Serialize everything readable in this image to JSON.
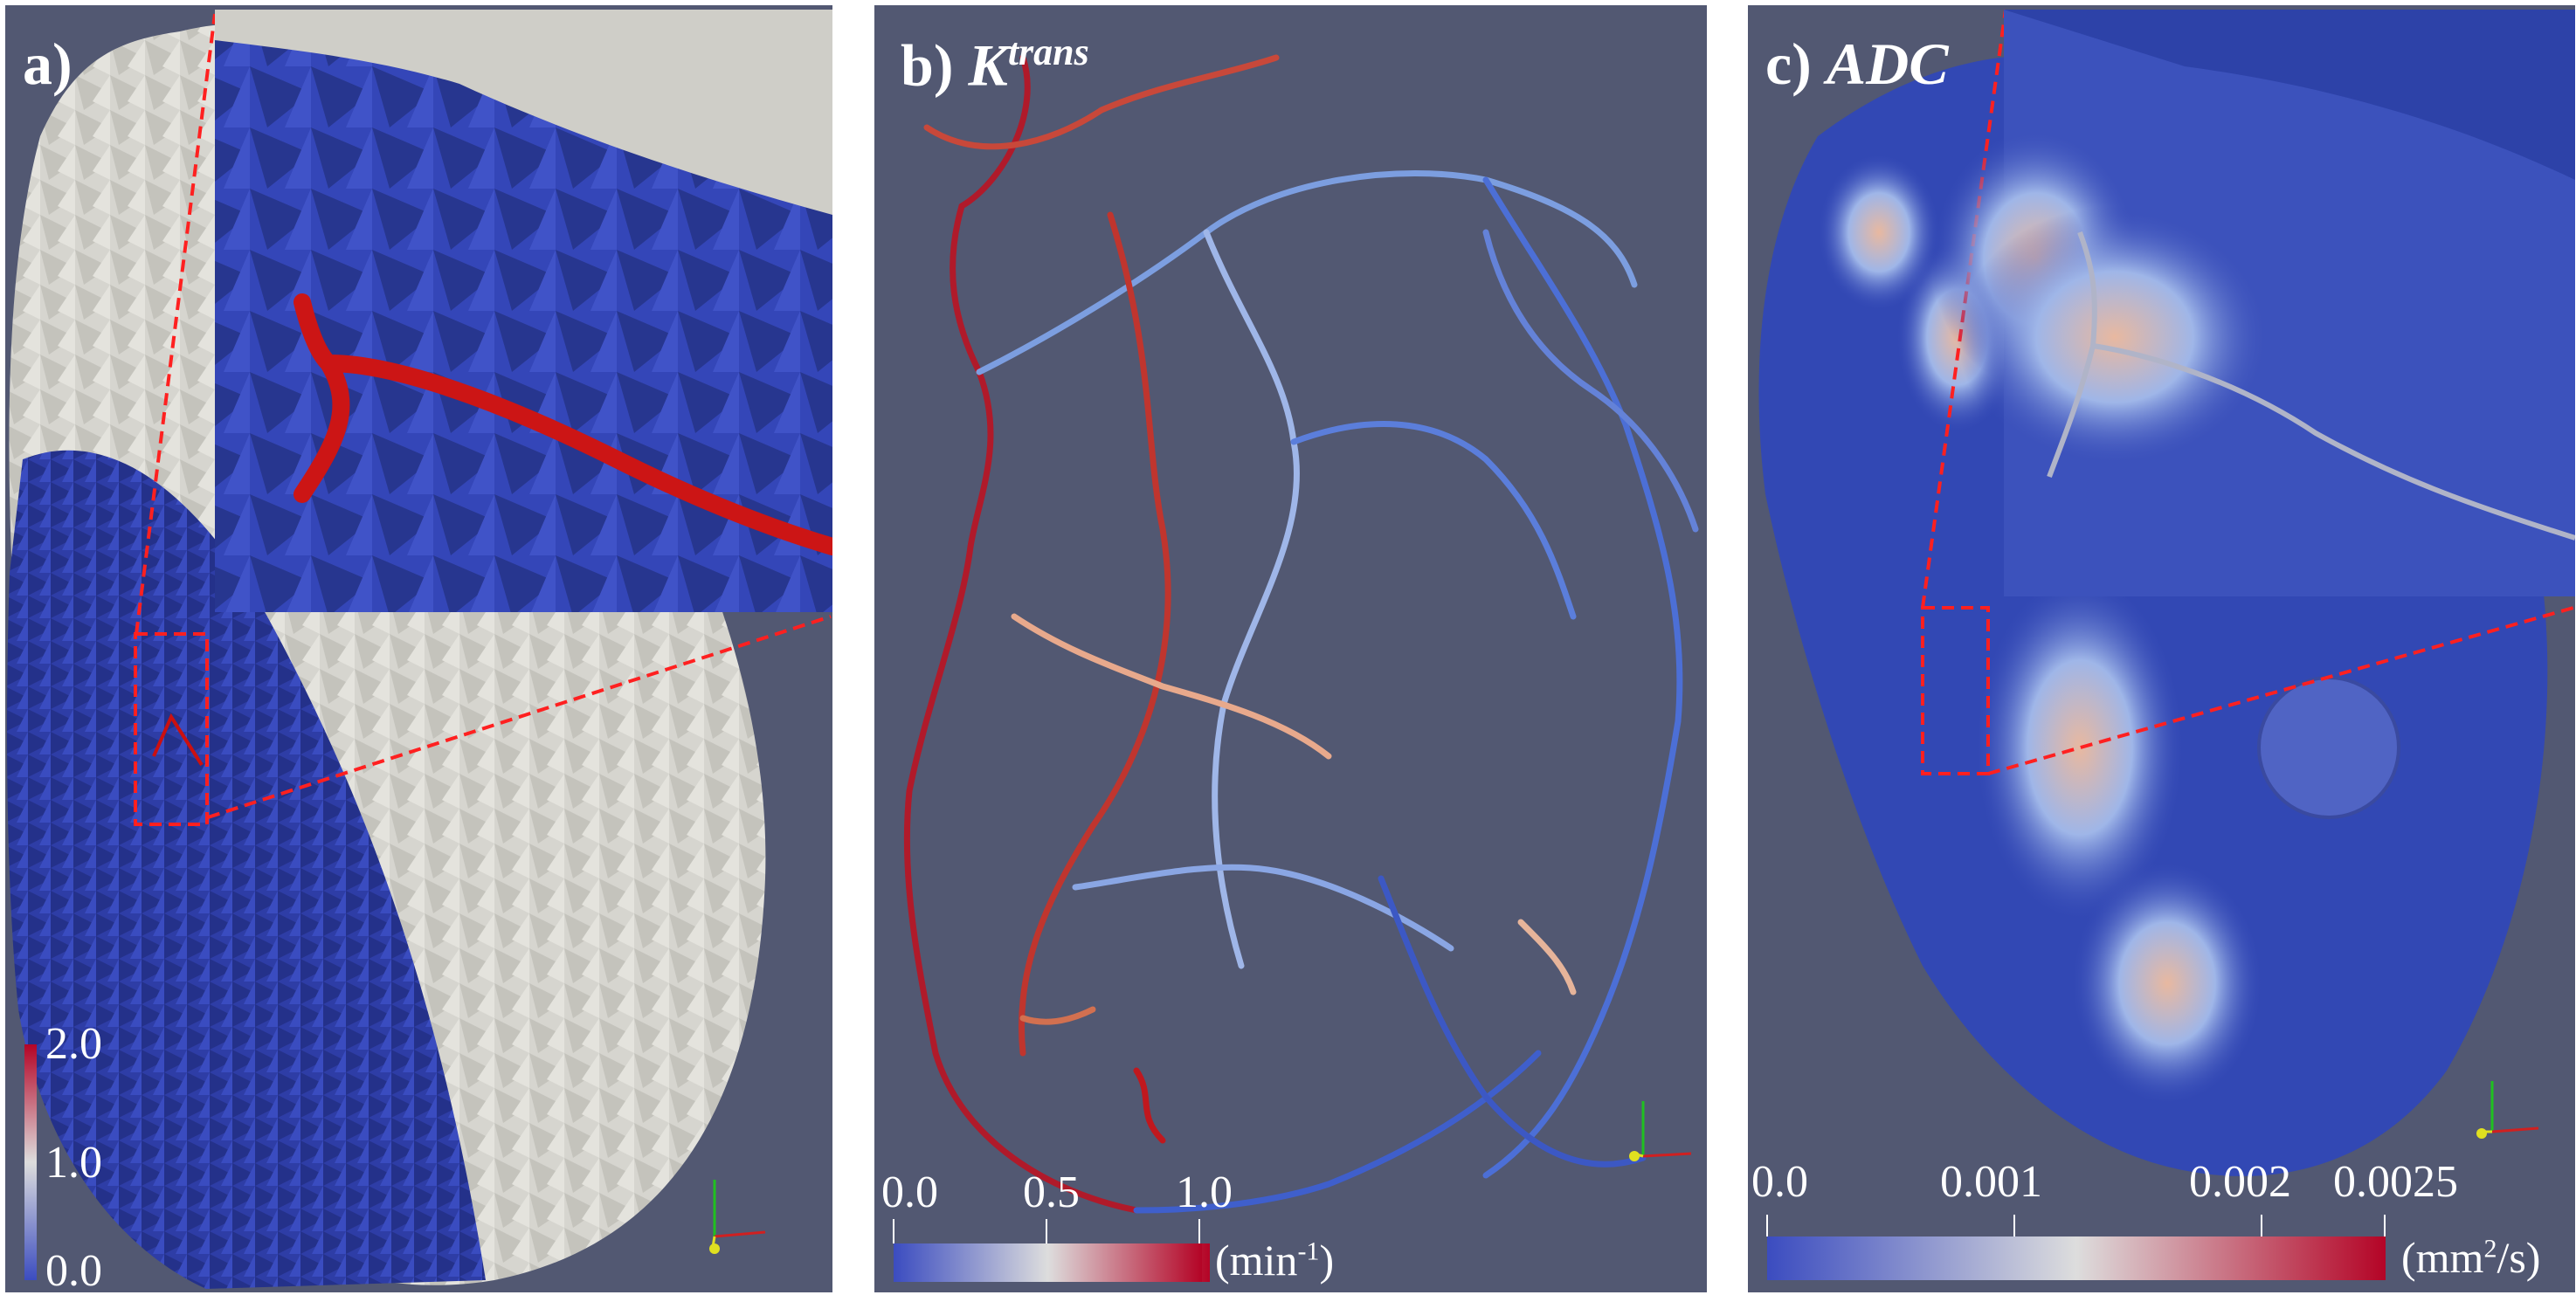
{
  "panels": {
    "a": {
      "label": "a)",
      "colorbar": {
        "ticks": [
          "2.0",
          "1.0",
          "0.0"
        ],
        "range": [
          0.0,
          2.0
        ],
        "orientation": "vertical"
      }
    },
    "b": {
      "label": "b)",
      "symbol": "K",
      "symbol_sup": "trans",
      "colorbar": {
        "ticks": [
          "0.0",
          "0.5",
          "1.0"
        ],
        "range": [
          0.0,
          1.0
        ],
        "unit": "(min",
        "unit_sup": "-1",
        "unit_end": ")",
        "orientation": "horizontal"
      }
    },
    "c": {
      "label": "c)",
      "symbol": "ADC",
      "colorbar": {
        "ticks": [
          "0.0",
          "0.001",
          "0.002",
          "0.0025"
        ],
        "range": [
          0.0,
          0.0025
        ],
        "unit": "(mm",
        "unit_sup": "2",
        "unit_end": "/s)",
        "orientation": "horizontal"
      }
    }
  },
  "colors": {
    "background": "#525872",
    "low": "#3b4cc0",
    "mid": "#dddddd",
    "high": "#b40426",
    "mesh_surface": "#d9d8d2",
    "mesh_cut": "#2d3ba0",
    "inset_outline": "#ff2020"
  },
  "icons": [
    "axes-triad-icon"
  ]
}
